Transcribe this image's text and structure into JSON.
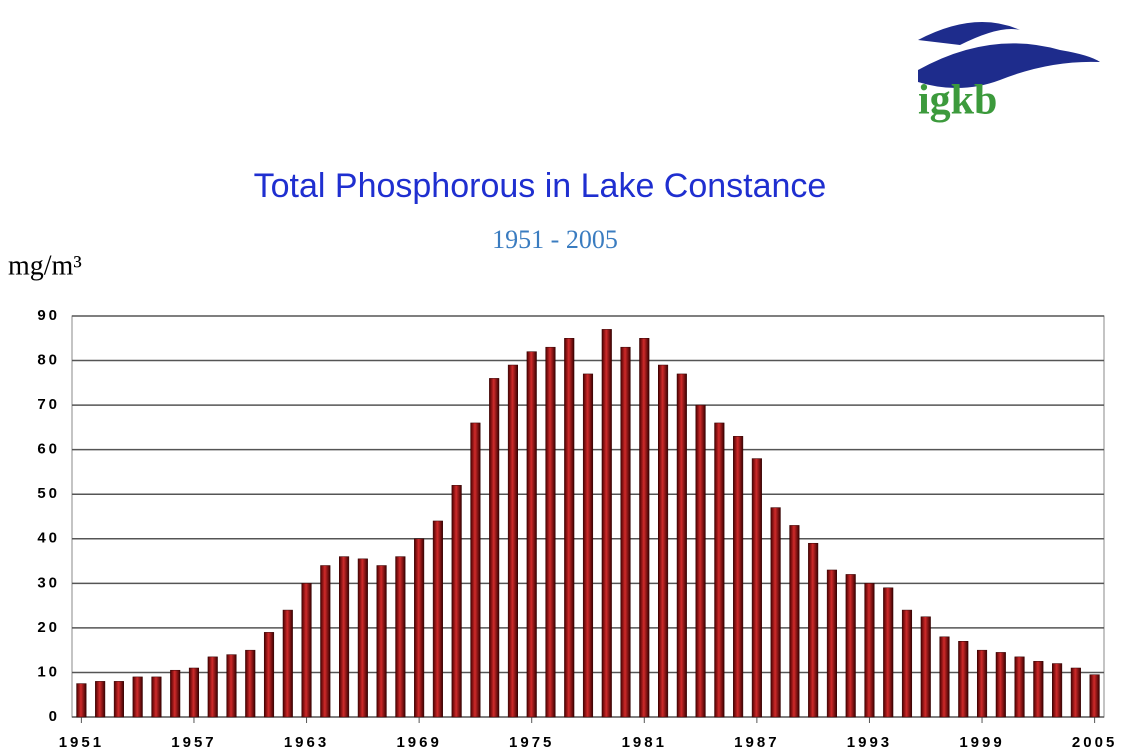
{
  "logo": {
    "text": "igkb"
  },
  "chart_data": {
    "type": "bar",
    "title": "Total Phosphorous in Lake Constance",
    "subtitle": "1951 - 2005",
    "y_label": "mg/m³",
    "categories": [
      "1951",
      null,
      null,
      null,
      null,
      null,
      "1957",
      null,
      null,
      null,
      null,
      null,
      "1963",
      null,
      null,
      null,
      null,
      null,
      "1969",
      null,
      null,
      null,
      null,
      null,
      "1975",
      null,
      null,
      null,
      null,
      null,
      "1981",
      null,
      null,
      null,
      null,
      null,
      "1987",
      null,
      null,
      null,
      null,
      null,
      "1993",
      null,
      null,
      null,
      null,
      null,
      "1999",
      null,
      null,
      null,
      null,
      null,
      "2005"
    ],
    "values": [
      7.5,
      8,
      8,
      9,
      9,
      10.5,
      11,
      13.5,
      14,
      15,
      19,
      24,
      30,
      34,
      36,
      35.5,
      34,
      36,
      40,
      44,
      52,
      66,
      76,
      79,
      82,
      83,
      85,
      77,
      87,
      83,
      85,
      79,
      77,
      70,
      66,
      63,
      58,
      47,
      43,
      39,
      33,
      32,
      30,
      29,
      24,
      22.5,
      18,
      17,
      15,
      14.5,
      13.5,
      12.5,
      12,
      11,
      9.5
    ],
    "color": "#d02a2a",
    "ylim": [
      0,
      90
    ],
    "yticks": [
      0,
      10,
      20,
      30,
      40,
      50,
      60,
      70,
      80,
      90
    ],
    "grid": true
  }
}
